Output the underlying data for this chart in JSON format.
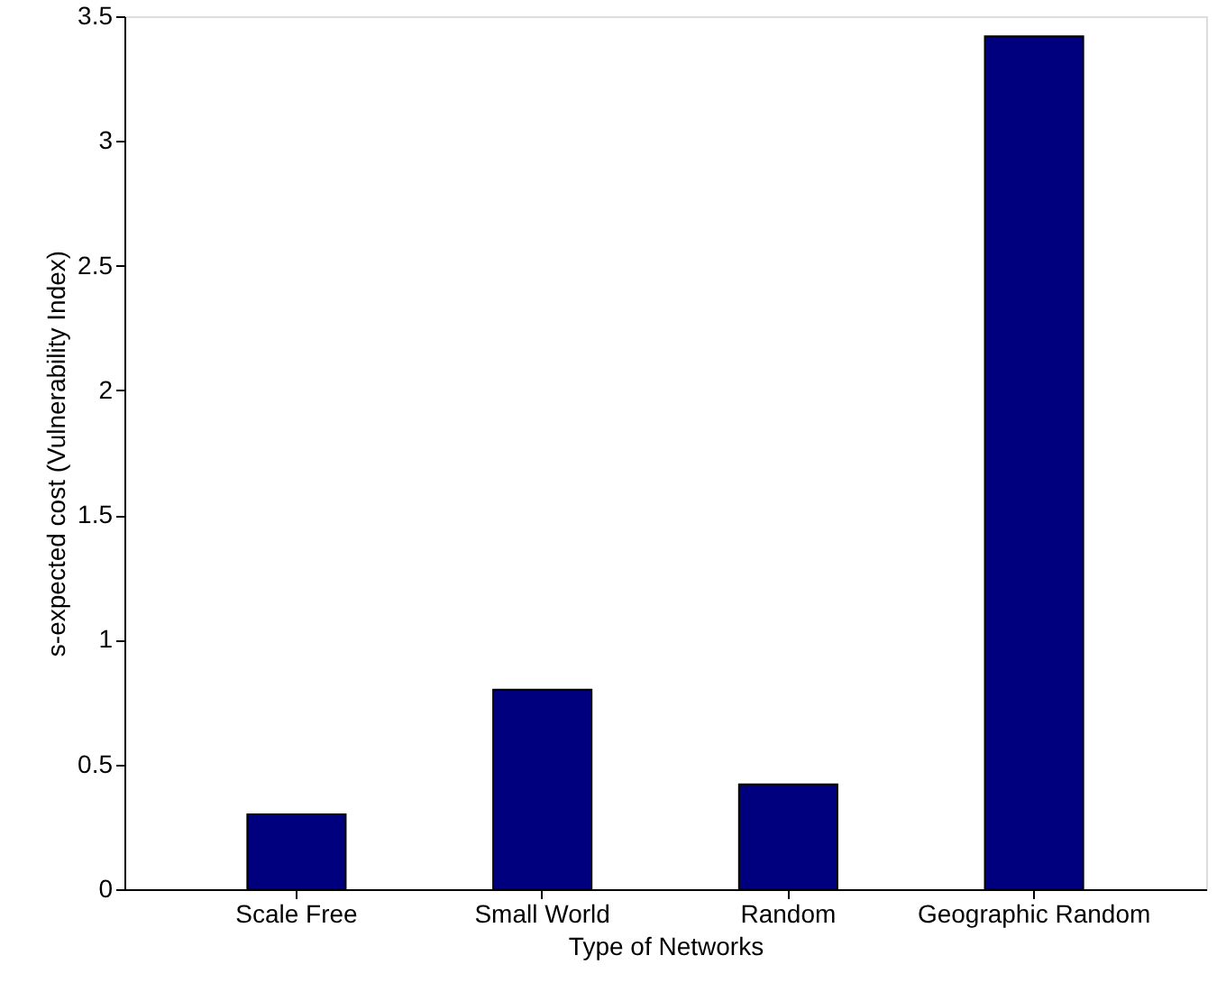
{
  "chart_data": {
    "type": "bar",
    "xlabel": "Type of Networks",
    "ylabel": "s-expected cost (Vulnerability Index)",
    "categories": [
      "Scale Free",
      "Small World",
      "Random",
      "Geographic Random"
    ],
    "values": [
      0.3,
      0.8,
      0.42,
      3.42
    ],
    "color": "#00007f",
    "ylim": [
      0,
      3.5
    ],
    "yticks": [
      0,
      0.5,
      1,
      1.5,
      2,
      2.5,
      3,
      3.5
    ],
    "grid": false
  }
}
